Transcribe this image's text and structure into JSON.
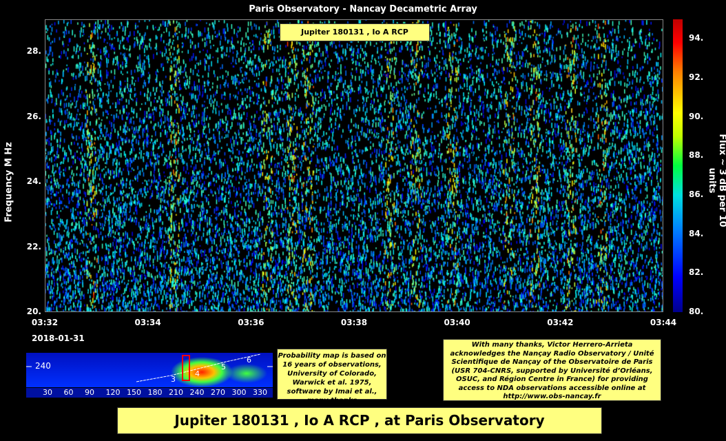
{
  "chart_data": {
    "type": "heatmap",
    "title": "Paris Observatory - Nancay Decametric Array",
    "subtitle": "Jupiter 180131 , Io A RCP",
    "xlabel": "",
    "ylabel": "Frequency   M Hz",
    "x_ticks": [
      "03:32",
      "03:34",
      "03:36",
      "03:38",
      "03:40",
      "03:42",
      "03:44"
    ],
    "x_date": "2018-01-31",
    "xlim": [
      "03:32",
      "03:44"
    ],
    "y_ticks": [
      20,
      22,
      24,
      26,
      28
    ],
    "y_tick_labels": [
      "20.",
      "22.",
      "24.",
      "26.",
      "28."
    ],
    "ylim": [
      20,
      29
    ],
    "colorbar": {
      "label": "Flux ~ 3 dB  per 10  units",
      "range": [
        80,
        95
      ],
      "ticks": [
        "80.",
        "82.",
        "84.",
        "86.",
        "88.",
        "90.",
        "92.",
        "94."
      ]
    },
    "colormap": "jet",
    "bursts_minutes_after_0332": [
      0.9,
      2.5,
      4.3,
      4.8,
      5.1,
      6.7,
      7.2,
      7.9,
      9.0,
      9.5,
      10.2,
      10.8
    ],
    "grid": false
  },
  "prob_map": {
    "y_label": "240",
    "x_ticks": [
      "30",
      "60",
      "90",
      "120",
      "150",
      "180",
      "210",
      "240",
      "270",
      "300",
      "330"
    ],
    "phase_labels": [
      "3",
      "4",
      "5",
      "6"
    ]
  },
  "prob_note": "Probability map is based on 16 years of observations, University of Colorado, Warwick et al. 1975, software by Imai et al., many thanks",
  "thanks": "With many thanks, Victor Herrero-Arrieta acknowledges the Nançay Radio Observatory / Unité Scientifique de Nançay of the Observatoire de Paris (USR 704-CNRS, supported by Université d’Orléans, OSUC, and Région Centre in France) for providing access to NDA observations accessible online at http://www.obs-nancay.fr",
  "banner": "Jupiter 180131 , Io A RCP , at Paris Observatory"
}
